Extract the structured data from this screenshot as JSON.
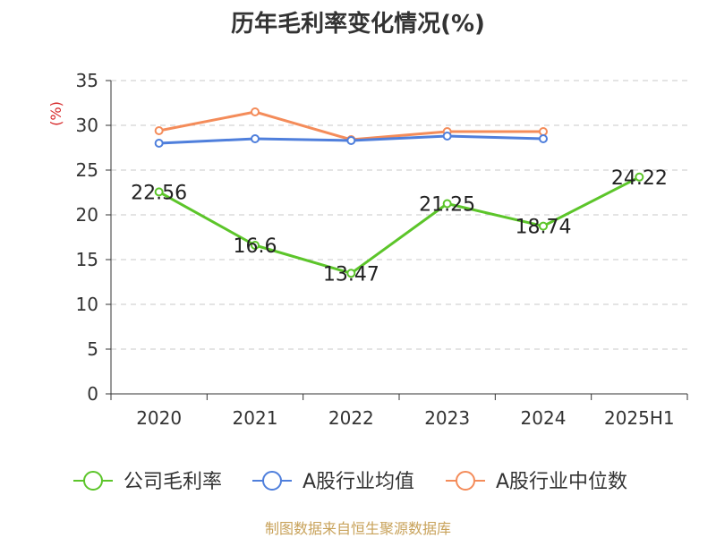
{
  "chart_data": {
    "type": "line",
    "title": "历年毛利率变化情况(%)",
    "ylabel": "(%)",
    "xlabel": "",
    "categories": [
      "2020",
      "2021",
      "2022",
      "2023",
      "2024",
      "2025H1"
    ],
    "ylim": [
      0,
      35
    ],
    "yticks": [
      0,
      5,
      10,
      15,
      20,
      25,
      30,
      35
    ],
    "grid": true,
    "legend_position": "bottom",
    "series": [
      {
        "name": "公司毛利率",
        "color": "#5cc52a",
        "values": [
          22.56,
          16.6,
          13.47,
          21.25,
          18.74,
          24.22
        ],
        "labels": [
          "22.56",
          "16.6",
          "13.47",
          "21.25",
          "18.74",
          "24.22"
        ]
      },
      {
        "name": "A股行业均值",
        "color": "#4f7fdc",
        "values": [
          28.0,
          28.5,
          28.3,
          28.8,
          28.5,
          null
        ]
      },
      {
        "name": "A股行业中位数",
        "color": "#f48c5a",
        "values": [
          29.4,
          31.5,
          28.4,
          29.3,
          29.3,
          null
        ]
      }
    ]
  },
  "source": "制图数据来自恒生聚源数据库"
}
